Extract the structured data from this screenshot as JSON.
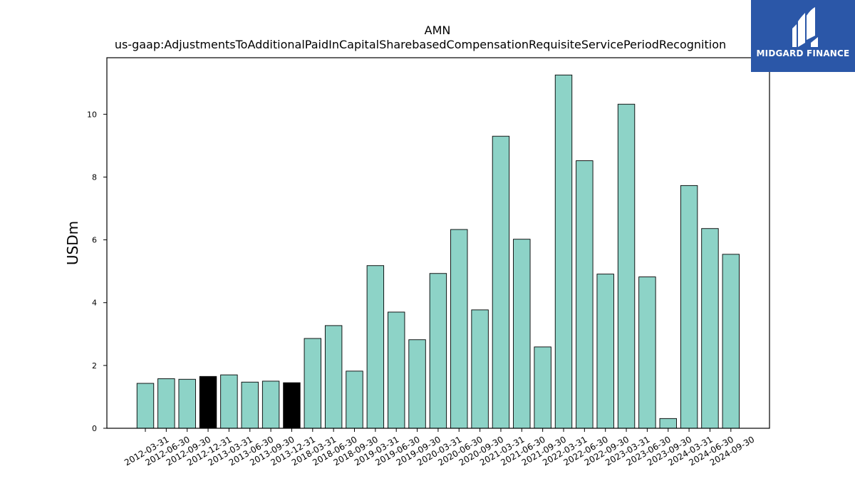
{
  "chart_data": {
    "type": "bar",
    "title": "AMN",
    "subtitle": "us-gaap:AdjustmentsToAdditionalPaidInCapitalSharebasedCompensationRequisiteServicePeriodRecognition",
    "xlabel": "",
    "ylabel": "USDm",
    "ylim": [
      0,
      11.8
    ],
    "yticks": [
      0,
      2,
      4,
      6,
      8,
      10
    ],
    "grid": false,
    "categories": [
      "2012-03-31",
      "2012-06-30",
      "2012-09-30",
      "2012-12-31",
      "2013-03-31",
      "2013-06-30",
      "2013-09-30",
      "2013-12-31",
      "2018-03-31",
      "2018-06-30",
      "2018-09-30",
      "2019-03-31",
      "2019-06-30",
      "2019-09-30",
      "2020-03-31",
      "2020-06-30",
      "2020-09-30",
      "2021-03-31",
      "2021-06-30",
      "2021-09-30",
      "2022-03-31",
      "2022-06-30",
      "2022-09-30",
      "2023-03-31",
      "2023-06-30",
      "2023-09-30",
      "2024-03-31",
      "2024-06-30",
      "2024-09-30"
    ],
    "values": [
      1.43,
      1.58,
      1.56,
      1.65,
      1.7,
      1.47,
      1.5,
      1.45,
      2.86,
      3.27,
      1.82,
      5.18,
      3.7,
      2.82,
      4.93,
      6.33,
      3.77,
      9.3,
      6.02,
      2.59,
      11.25,
      8.52,
      4.91,
      10.32,
      4.82,
      0.31,
      7.73,
      6.36,
      5.54
    ],
    "highlight": [
      false,
      false,
      false,
      true,
      false,
      false,
      false,
      true,
      false,
      false,
      false,
      false,
      false,
      false,
      false,
      false,
      false,
      false,
      false,
      false,
      false,
      false,
      false,
      false,
      false,
      false,
      false,
      false,
      false
    ],
    "colors": {
      "bar": "#8dd3c7",
      "highlight": "#000000",
      "edge": "#000000"
    }
  },
  "logo": {
    "text": "MIDGARD FINANCE",
    "background": "#2b57a8"
  }
}
